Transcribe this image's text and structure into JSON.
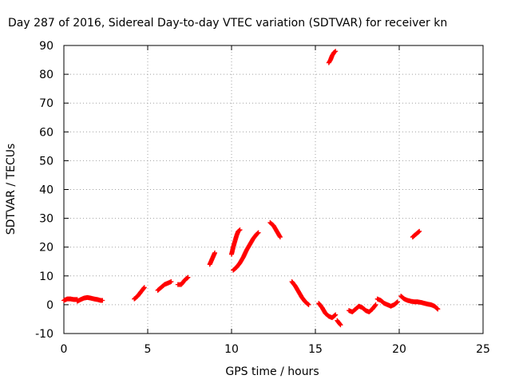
{
  "chart_data": {
    "type": "scatter",
    "title": "Day 287 of 2016, Sidereal Day-to-day VTEC variation (SDTVAR) for receiver kn",
    "xlabel": "GPS time / hours",
    "ylabel": "SDTVAR / TECUs",
    "xlim": [
      0,
      25
    ],
    "ylim": [
      -10,
      90
    ],
    "xticks": [
      "0",
      "5",
      "10",
      "15",
      "20",
      "25"
    ],
    "yticks": [
      "-10",
      "0",
      "10",
      "20",
      "30",
      "40",
      "50",
      "60",
      "70",
      "80",
      "90"
    ],
    "grid": true,
    "legend": "none",
    "marker": "plus",
    "color": "#ff0000",
    "segments": [
      {
        "x": [
          0.0,
          0.2,
          0.4,
          0.6,
          0.8
        ],
        "y": [
          1.5,
          2.0,
          2.0,
          1.8,
          1.8
        ]
      },
      {
        "x": [
          0.8,
          1.0,
          1.2,
          1.4,
          1.6,
          1.8,
          2.0,
          2.2,
          2.3
        ],
        "y": [
          1.2,
          1.8,
          2.3,
          2.5,
          2.3,
          2.0,
          1.8,
          1.5,
          1.5
        ]
      },
      {
        "x": [
          4.2,
          4.4,
          4.6,
          4.8
        ],
        "y": [
          2.0,
          3.0,
          4.5,
          6.0
        ]
      },
      {
        "x": [
          5.6,
          5.8,
          6.0,
          6.2,
          6.4
        ],
        "y": [
          5.0,
          6.0,
          7.0,
          7.5,
          8.0
        ]
      },
      {
        "x": [
          6.8,
          7.0,
          7.2,
          7.4
        ],
        "y": [
          7.0,
          7.0,
          8.5,
          9.5
        ]
      },
      {
        "x": [
          8.7,
          8.85,
          9.0
        ],
        "y": [
          14.0,
          16.0,
          18.0
        ]
      },
      {
        "x": [
          10.0,
          10.1,
          10.2,
          10.3,
          10.4,
          10.5
        ],
        "y": [
          17.5,
          20.0,
          22.0,
          24.0,
          25.5,
          26.0
        ]
      },
      {
        "x": [
          10.1,
          10.3,
          10.5,
          10.7,
          10.9,
          11.1,
          11.3,
          11.5,
          11.6
        ],
        "y": [
          12.0,
          13.0,
          14.5,
          16.5,
          19.0,
          21.0,
          23.0,
          24.5,
          25.0
        ]
      },
      {
        "x": [
          12.3,
          12.5,
          12.7,
          12.9
        ],
        "y": [
          28.5,
          27.5,
          25.5,
          23.5
        ]
      },
      {
        "x": [
          13.6,
          13.8,
          14.0,
          14.2,
          14.4,
          14.6
        ],
        "y": [
          8.0,
          6.5,
          4.5,
          2.5,
          1.0,
          0.0
        ]
      },
      {
        "x": [
          15.2,
          15.4,
          15.6,
          15.8,
          16.0,
          16.2
        ],
        "y": [
          0.5,
          -1.0,
          -3.0,
          -4.0,
          -4.5,
          -3.5
        ]
      },
      {
        "x": [
          16.3,
          16.5
        ],
        "y": [
          -5.5,
          -7.0
        ]
      },
      {
        "x": [
          15.8,
          15.9,
          16.0,
          16.1,
          16.2
        ],
        "y": [
          84.0,
          85.0,
          86.5,
          87.5,
          88.0
        ]
      },
      {
        "x": [
          17.0,
          17.2,
          17.4,
          17.6,
          17.8,
          18.0,
          18.2,
          18.4,
          18.6
        ],
        "y": [
          -2.0,
          -2.5,
          -1.5,
          -0.5,
          -1.0,
          -2.0,
          -2.5,
          -1.5,
          0.0
        ]
      },
      {
        "x": [
          18.7,
          18.9,
          19.1,
          19.3,
          19.5,
          19.7,
          19.9
        ],
        "y": [
          2.0,
          1.5,
          0.5,
          0.0,
          -0.5,
          0.0,
          1.0
        ]
      },
      {
        "x": [
          20.1,
          20.3,
          20.5,
          20.7,
          20.9,
          21.1,
          21.3,
          21.5,
          21.7,
          21.9,
          22.1,
          22.3
        ],
        "y": [
          3.0,
          2.0,
          1.5,
          1.2,
          1.0,
          1.0,
          0.8,
          0.5,
          0.2,
          0.0,
          -0.5,
          -1.5
        ]
      },
      {
        "x": [
          20.8,
          21.0,
          21.2
        ],
        "y": [
          23.5,
          24.5,
          25.5
        ]
      }
    ]
  }
}
